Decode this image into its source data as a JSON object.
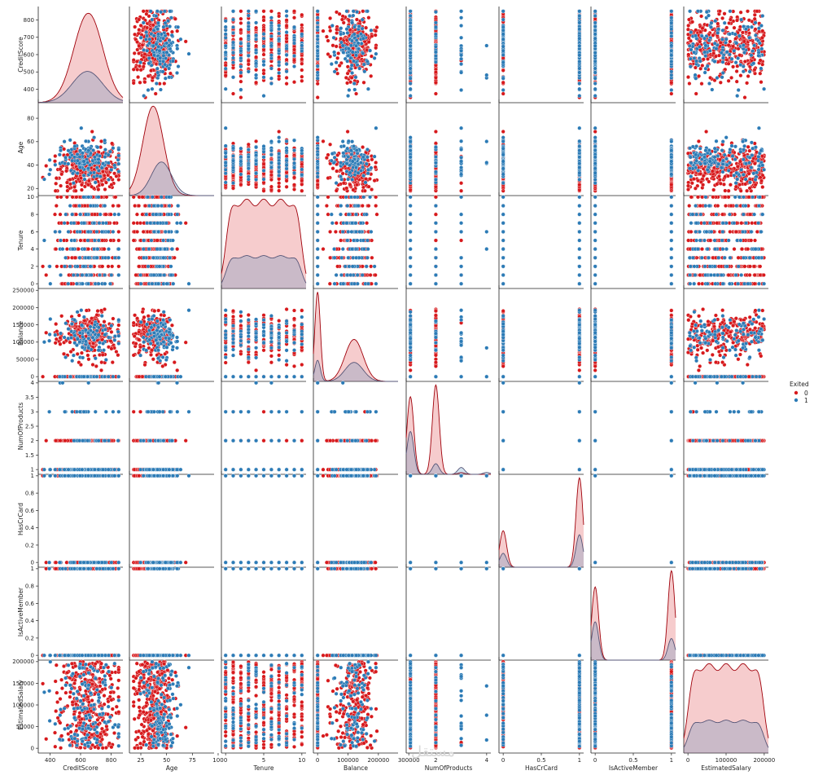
{
  "chart_data": {
    "type": "scatter",
    "title": "",
    "hue": "Exited",
    "legend": {
      "title": "Exited",
      "placement": "right",
      "entries": [
        {
          "label": "0",
          "color": "#d7191c"
        },
        {
          "label": "1",
          "color": "#2c7bb6"
        }
      ]
    },
    "variables": [
      {
        "name": "CreditScore",
        "range": [
          350,
          850
        ],
        "xticks": [
          400,
          600,
          800
        ],
        "yticks": [
          400,
          500,
          600,
          700,
          800
        ],
        "dist": {
          "type": "cont",
          "mu0": 651,
          "s0": 95,
          "mu1": 645,
          "s1": 100
        },
        "pop": {
          "type": "cont",
          "mu0": 651,
          "s0": 95,
          "mu1": 645,
          "s1": 100
        }
      },
      {
        "name": "Age",
        "range": [
          18,
          92
        ],
        "xticks": [
          25,
          50,
          75,
          100
        ],
        "yticks": [
          20,
          40,
          60,
          80
        ],
        "dist": {
          "type": "cont",
          "mu0": 37,
          "s0": 10,
          "mu1": 45,
          "s1": 9.8
        },
        "pop": {
          "type": "cont",
          "mu0": 37,
          "s0": 10,
          "mu1": 45,
          "s1": 9.8
        }
      },
      {
        "name": "Tenure",
        "range": [
          0,
          10
        ],
        "xticks": [
          0,
          5,
          10
        ],
        "yticks": [
          0,
          2,
          4,
          6,
          8,
          10
        ],
        "dist": {
          "type": "uniform",
          "lo": 0,
          "hi": 10
        },
        "pop": {
          "type": "int",
          "vals": [
            0,
            1,
            2,
            3,
            4,
            5,
            6,
            7,
            8,
            9,
            10
          ]
        }
      },
      {
        "name": "Balance",
        "range": [
          0,
          250898
        ],
        "xticks": [
          0,
          100000,
          200000,
          300000
        ],
        "yticks": [
          0,
          50000,
          100000,
          150000,
          200000,
          250000
        ],
        "dist": {
          "type": "balance"
        },
        "pop": {
          "type": "balance"
        }
      },
      {
        "name": "NumOfProducts",
        "range": [
          1,
          4
        ],
        "xticks": [
          2,
          4
        ],
        "yticks": [
          1.0,
          1.5,
          2.0,
          2.5,
          3.0,
          3.5,
          4.0
        ],
        "dist": {
          "type": "discrete",
          "vals": [
            1,
            2,
            3,
            4
          ],
          "p0": [
            0.46,
            0.53,
            0.01,
            0.0
          ],
          "p1": [
            0.69,
            0.17,
            0.11,
            0.03
          ]
        },
        "pop": {
          "type": "disc",
          "vals": [
            1,
            2,
            3,
            4
          ],
          "p0": [
            0.46,
            0.53,
            0.01,
            0.0
          ],
          "p1": [
            0.69,
            0.17,
            0.11,
            0.03
          ]
        }
      },
      {
        "name": "HasCrCard",
        "range": [
          0,
          1
        ],
        "xticks": [
          0.0,
          0.5,
          1.0
        ],
        "yticks": [
          0.0,
          0.2,
          0.4,
          0.6,
          0.8,
          1.0
        ],
        "dist": {
          "type": "discrete",
          "vals": [
            0,
            1
          ],
          "p0": [
            0.29,
            0.71
          ],
          "p1": [
            0.3,
            0.7
          ]
        },
        "pop": {
          "type": "disc",
          "vals": [
            0,
            1
          ],
          "p0": [
            0.29,
            0.71
          ],
          "p1": [
            0.3,
            0.7
          ]
        }
      },
      {
        "name": "IsActiveMember",
        "range": [
          0,
          1
        ],
        "xticks": [
          0.0,
          0.5,
          1.0
        ],
        "yticks": [
          0.0,
          0.2,
          0.4,
          0.6,
          0.8,
          1.0
        ],
        "dist": {
          "type": "discrete",
          "vals": [
            0,
            1
          ],
          "p0": [
            0.45,
            0.55
          ],
          "p1": [
            0.64,
            0.36
          ]
        },
        "pop": {
          "type": "disc",
          "vals": [
            0,
            1
          ],
          "p0": [
            0.45,
            0.55
          ],
          "p1": [
            0.64,
            0.36
          ]
        }
      },
      {
        "name": "EstimatedSalary",
        "range": [
          11,
          199992
        ],
        "xticks": [
          0,
          100000,
          200000
        ],
        "yticks": [
          0,
          50000,
          100000,
          150000,
          200000
        ],
        "dist": {
          "type": "uniform",
          "lo": 11,
          "hi": 199992
        },
        "pop": {
          "type": "uniformc",
          "lo": 11,
          "hi": 199992
        }
      }
    ],
    "xlabel": "",
    "ylabel": ""
  },
  "colors": {
    "class0": "#d7191c",
    "class1": "#2c7bb6"
  },
  "watermark": "مستقل"
}
